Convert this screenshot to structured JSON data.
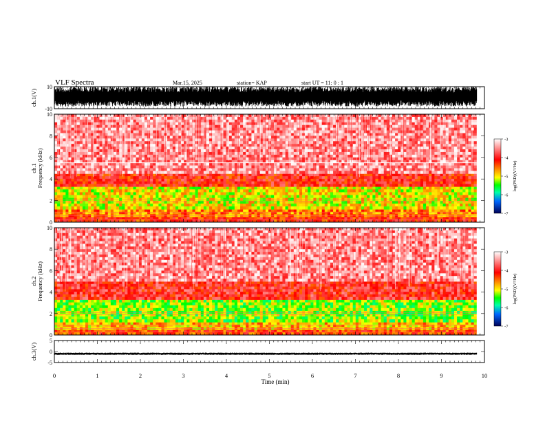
{
  "header": {
    "title": "VLF Spectra",
    "date": "Mar.15, 2025",
    "station": "station= KAP",
    "start_ut": "start  UT =   11: 0  : 1"
  },
  "chart_data": [
    {
      "type": "line",
      "panel": "ch1-waveform",
      "ylabel": "ch.1(V)",
      "ylim": [
        -10,
        10
      ],
      "y_ticks": [
        "10",
        "-10"
      ],
      "x_range_min": [
        0,
        10
      ],
      "data_extent_min": [
        0,
        9.82
      ],
      "description_values": {
        "typical_min_V": -8,
        "typical_max_V": 10
      }
    },
    {
      "type": "heatmap",
      "panel": "ch1-spectrogram",
      "ylabel": "ch.1\nFrequency  (kHz)",
      "ylim": [
        0,
        10
      ],
      "y_ticks": [
        "0",
        "2",
        "4",
        "6",
        "8",
        "10"
      ],
      "x_range_min": [
        0,
        10
      ],
      "data_extent_min": [
        0,
        9.82
      ],
      "colorbar": {
        "label": "log(PSD)(V²/Hz)",
        "range": [
          -7,
          -3
        ],
        "ticks": [
          "-3",
          "-4",
          "-5",
          "-6",
          "-7"
        ]
      },
      "bands_kHz_log_psd": [
        {
          "f0": 0,
          "f1": 0.5,
          "v": -4.2
        },
        {
          "f0": 0.5,
          "f1": 1.2,
          "v": -4.6
        },
        {
          "f0": 1.2,
          "f1": 3.3,
          "v": -5.0
        },
        {
          "f0": 3.3,
          "f1": 4.5,
          "v": -4.1
        },
        {
          "f0": 4.5,
          "f1": 10,
          "v": -3.5
        }
      ]
    },
    {
      "type": "heatmap",
      "panel": "ch2-spectrogram",
      "ylabel": "ch.2\nFrequency  (kHz)",
      "ylim": [
        0,
        10
      ],
      "y_ticks": [
        "0",
        "2",
        "4",
        "6",
        "8",
        "10"
      ],
      "x_range_min": [
        0,
        10
      ],
      "data_extent_min": [
        0,
        9.82
      ],
      "colorbar": {
        "label": "log(PSD)(V²/Hz)",
        "range": [
          -7,
          -3
        ],
        "ticks": [
          "-3",
          "-4",
          "-5",
          "-6",
          "-7"
        ]
      },
      "bands_kHz_log_psd": [
        {
          "f0": 0,
          "f1": 0.5,
          "v": -4.3
        },
        {
          "f0": 0.5,
          "f1": 1.2,
          "v": -4.8
        },
        {
          "f0": 1.2,
          "f1": 3.3,
          "v": -5.3
        },
        {
          "f0": 3.3,
          "f1": 5.0,
          "v": -4.0
        },
        {
          "f0": 5.0,
          "f1": 10,
          "v": -3.5
        }
      ]
    },
    {
      "type": "line",
      "panel": "ch3-waveform",
      "ylabel": "ch.3(V)",
      "ylim": [
        -5,
        5
      ],
      "y_ticks": [
        "5",
        "0",
        "-5"
      ],
      "x_range_min": [
        0,
        10
      ],
      "data_extent_min": [
        0,
        9.82
      ],
      "description_values": {
        "typical_min_V": -1.5,
        "typical_max_V": -0.5
      }
    }
  ],
  "x_axis": {
    "label": "Time  (min)",
    "ticks": [
      "0",
      "1",
      "2",
      "3",
      "4",
      "5",
      "6",
      "7",
      "8",
      "9",
      "10"
    ]
  },
  "colors": {
    "high_psd": "#ff0000",
    "mid_psd": "#ffff00",
    "low_psd": "#00ff00",
    "lowest_psd": "#0000ff",
    "trace": "#000000"
  }
}
